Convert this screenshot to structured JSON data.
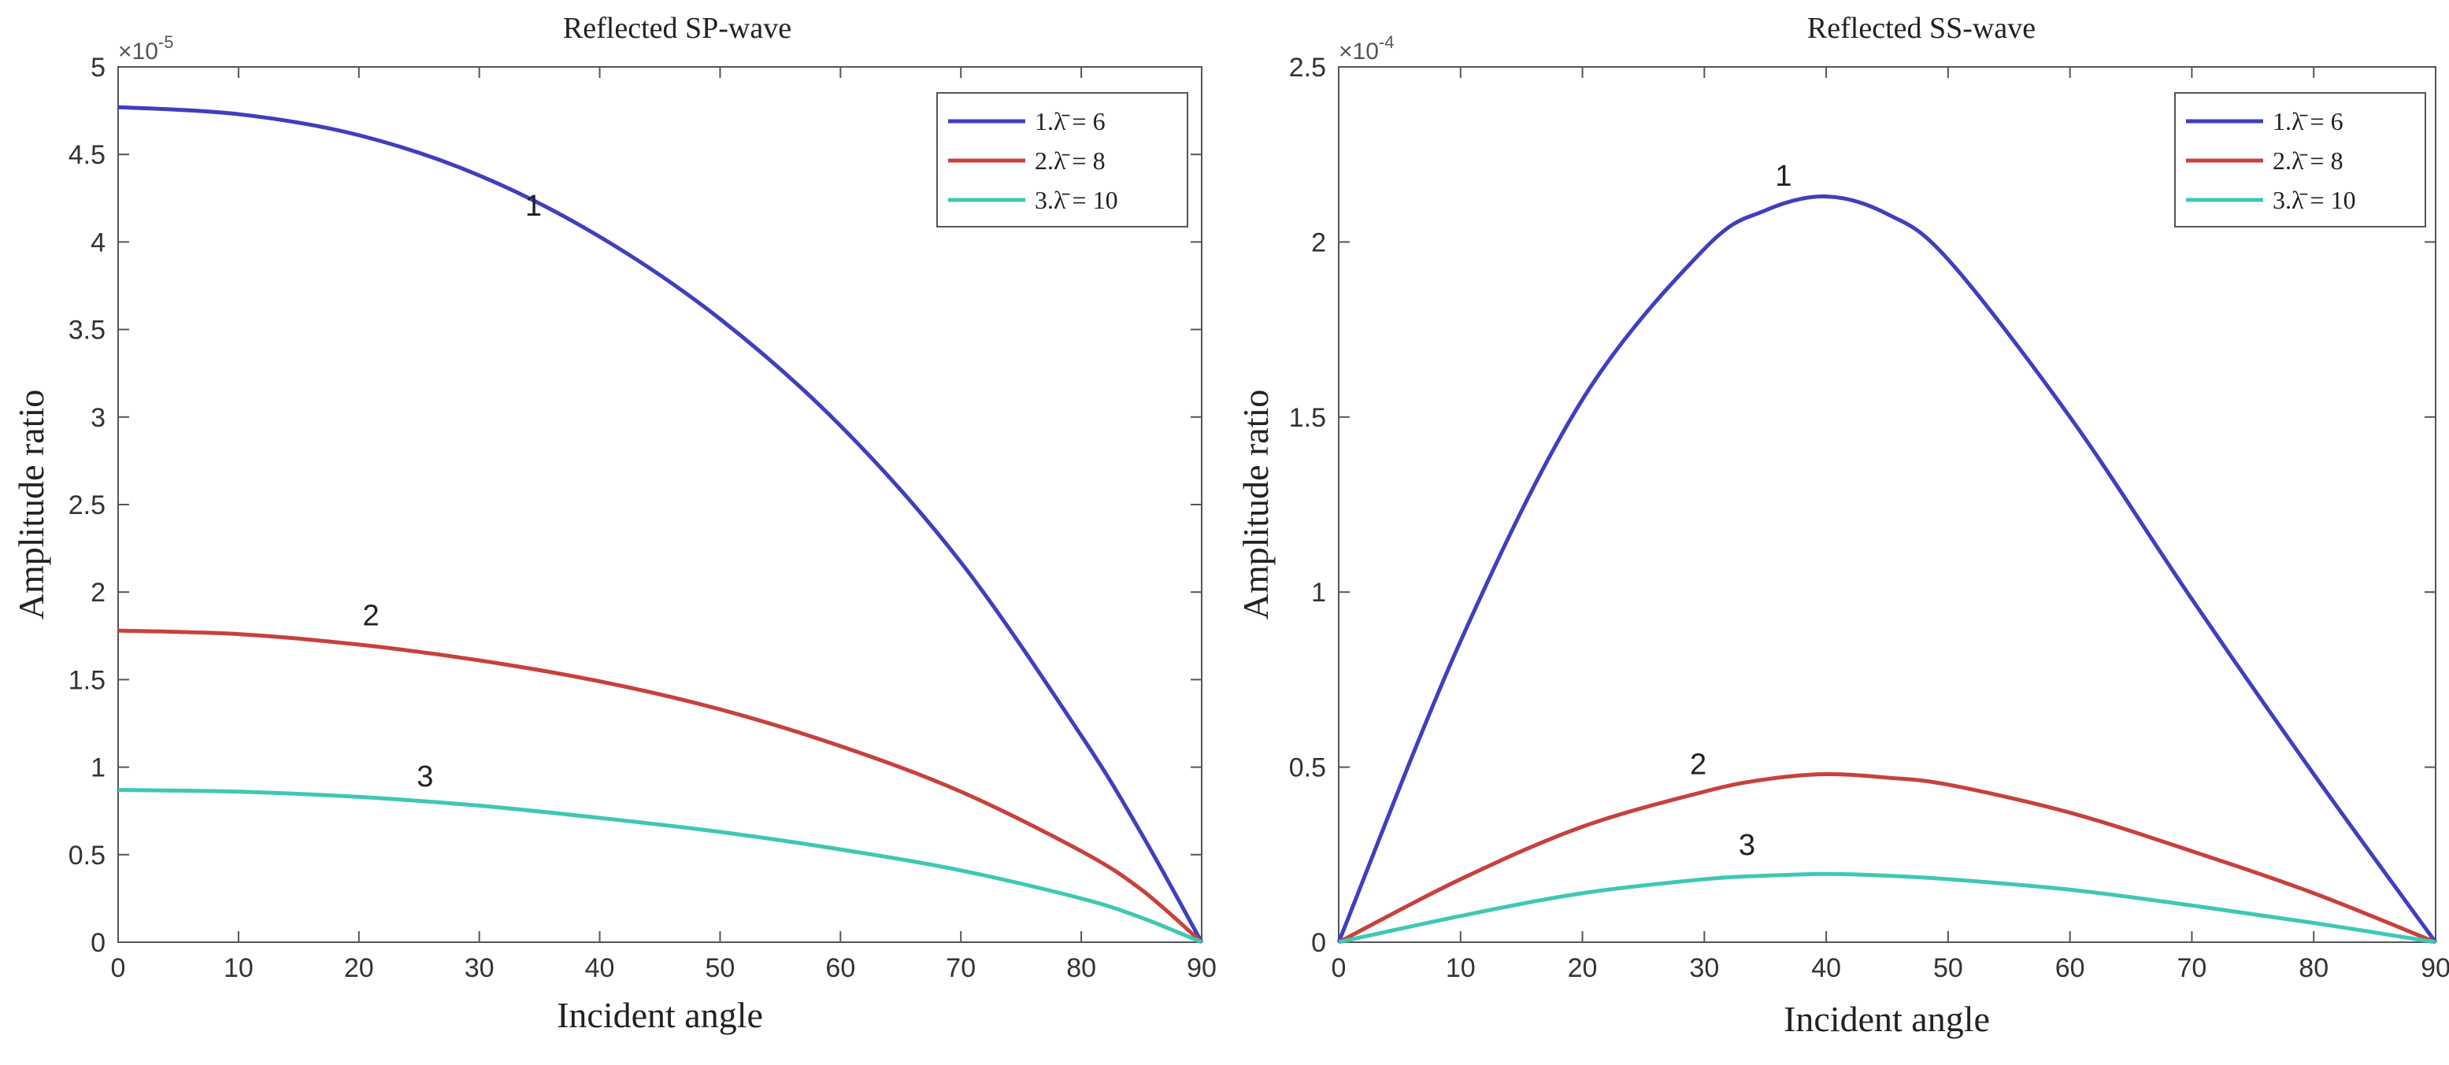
{
  "chart_data": [
    {
      "type": "line",
      "title": "Reflected SP-wave",
      "xlabel": "Incident angle",
      "ylabel": "Amplitude ratio",
      "exponent_base": "×10",
      "exponent_power": "-5",
      "xlim": [
        0,
        90
      ],
      "ylim": [
        0,
        5
      ],
      "xticks": [
        0,
        10,
        20,
        30,
        40,
        50,
        60,
        70,
        80,
        90
      ],
      "yticks": [
        0,
        0.5,
        1,
        1.5,
        2,
        2.5,
        3,
        3.5,
        4,
        4.5,
        5
      ],
      "ytick_labels": [
        "0",
        "0.5",
        "1",
        "1.5",
        "2",
        "2.5",
        "3",
        "3.5",
        "4",
        "4.5",
        "5"
      ],
      "grid": false,
      "legend_position": "top-right",
      "x": [
        0,
        10,
        20,
        30,
        40,
        50,
        60,
        70,
        80,
        85,
        90
      ],
      "series": [
        {
          "name": "1.λ̄ = 6",
          "color": "#3f3fbf",
          "values": [
            4.77,
            4.73,
            4.61,
            4.38,
            4.03,
            3.56,
            2.95,
            2.17,
            1.18,
            0.62,
            0
          ]
        },
        {
          "name": "2.λ̄ = 8",
          "color": "#c8413c",
          "values": [
            1.78,
            1.76,
            1.7,
            1.61,
            1.49,
            1.33,
            1.12,
            0.86,
            0.52,
            0.3,
            0
          ]
        },
        {
          "name": "3.λ̄ = 10",
          "color": "#3ec8b4",
          "values": [
            0.87,
            0.86,
            0.83,
            0.78,
            0.71,
            0.63,
            0.53,
            0.41,
            0.25,
            0.14,
            0
          ]
        }
      ],
      "annotations": [
        {
          "text": "1",
          "x": 34.5,
          "y": 4.15
        },
        {
          "text": "2",
          "x": 21,
          "y": 1.81
        },
        {
          "text": "3",
          "x": 25.5,
          "y": 0.89
        }
      ]
    },
    {
      "type": "line",
      "title": "Reflected SS-wave",
      "xlabel": "Incident angle",
      "ylabel": "Amplitude ratio",
      "exponent_base": "×10",
      "exponent_power": "-4",
      "xlim": [
        0,
        90
      ],
      "ylim": [
        0,
        2.5
      ],
      "xticks": [
        0,
        10,
        20,
        30,
        40,
        50,
        60,
        70,
        80,
        90
      ],
      "yticks": [
        0,
        0.5,
        1,
        1.5,
        2,
        2.5
      ],
      "ytick_labels": [
        "0",
        "0.5",
        "1",
        "1.5",
        "2",
        "2.5"
      ],
      "grid": false,
      "legend_position": "top-right",
      "x": [
        0,
        10,
        20,
        30,
        35,
        40,
        45,
        50,
        60,
        70,
        80,
        90
      ],
      "series": [
        {
          "name": "1.λ̄ = 6",
          "color": "#3f3fbf",
          "values": [
            0,
            0.86,
            1.55,
            1.98,
            2.09,
            2.13,
            2.08,
            1.95,
            1.5,
            0.98,
            0.48,
            0
          ]
        },
        {
          "name": "2.λ̄ = 8",
          "color": "#c8413c",
          "values": [
            0,
            0.18,
            0.33,
            0.43,
            0.465,
            0.48,
            0.47,
            0.45,
            0.37,
            0.26,
            0.14,
            0
          ]
        },
        {
          "name": "3.λ̄ = 10",
          "color": "#3ec8b4",
          "values": [
            0,
            0.075,
            0.14,
            0.18,
            0.19,
            0.195,
            0.19,
            0.18,
            0.15,
            0.105,
            0.055,
            0
          ]
        }
      ],
      "annotations": [
        {
          "text": "1",
          "x": 36.5,
          "y": 2.16
        },
        {
          "text": "2",
          "x": 29.5,
          "y": 0.48
        },
        {
          "text": "3",
          "x": 33.5,
          "y": 0.25
        }
      ]
    }
  ]
}
